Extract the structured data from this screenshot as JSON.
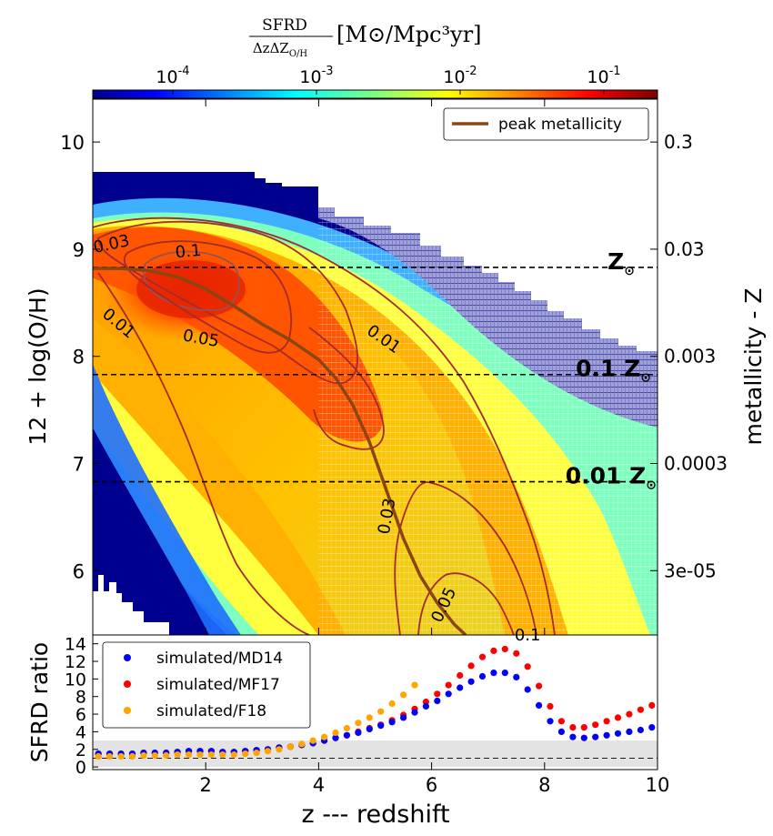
{
  "colorbar": {
    "title": "SFRD / ΔzΔZ_O/H [M⊙/Mpc³yr]",
    "title_num": "SFRD",
    "title_den": "ΔzΔZ",
    "title_den_sub": "O/H",
    "title_units": "[M⊙/Mpc³yr]",
    "ticks": [
      {
        "base": "10",
        "exp": "-4",
        "value": 0.0001
      },
      {
        "base": "10",
        "exp": "-3",
        "value": 0.001
      },
      {
        "base": "10",
        "exp": "-2",
        "value": 0.01
      },
      {
        "base": "10",
        "exp": "-1",
        "value": 0.1
      }
    ],
    "range": [
      2e-05,
      0.25
    ],
    "scale": "log"
  },
  "chart_data": [
    {
      "type": "heatmap",
      "title": "",
      "xlabel": "z --- redshift",
      "ylabel": "12 + log(O/H)",
      "ylabel_right": "metallicity - Z",
      "xlim": [
        0,
        10
      ],
      "ylim": [
        5.4,
        10.4
      ],
      "yticks": [
        "6",
        "7",
        "8",
        "9",
        "10"
      ],
      "yticks_right": [
        {
          "label": "3e-05",
          "oh": 6.0
        },
        {
          "label": "0.0003",
          "oh": 7.0
        },
        {
          "label": "0.003",
          "oh": 8.0
        },
        {
          "label": "0.03",
          "oh": 9.0
        },
        {
          "label": "0.3",
          "oh": 10.0
        }
      ],
      "hatched_region_start_z": 4,
      "legend": {
        "location": "top-right",
        "entries": [
          {
            "label": "peak metallicity",
            "color": "#8b4513"
          }
        ]
      },
      "reference_lines": [
        {
          "label": "Z",
          "sub": "⊙",
          "oh": 8.83
        },
        {
          "label": "0.1 Z",
          "sub": "⊙",
          "oh": 7.83
        },
        {
          "label": "0.01 Z",
          "sub": "⊙",
          "oh": 6.83
        }
      ],
      "peak_metallicity": {
        "z": [
          0,
          0.5,
          1,
          1.5,
          2,
          2.5,
          3,
          3.5,
          4,
          4.3,
          4.6,
          4.9,
          5.2,
          5.5,
          5.8,
          6.1,
          6.4,
          6.6
        ],
        "oh": [
          8.82,
          8.82,
          8.8,
          8.74,
          8.63,
          8.47,
          8.3,
          8.15,
          7.97,
          7.8,
          7.55,
          7.2,
          6.75,
          6.3,
          5.95,
          5.7,
          5.5,
          5.4
        ]
      },
      "contour_labels": [
        {
          "text": "0.03",
          "z": 0.35,
          "oh": 9.0
        },
        {
          "text": "0.1",
          "z": 1.7,
          "oh": 8.93
        },
        {
          "text": "0.01",
          "z": 0.4,
          "oh": 8.27
        },
        {
          "text": "0.05",
          "z": 1.9,
          "oh": 8.12
        },
        {
          "text": "0.01",
          "z": 5.1,
          "oh": 8.12
        },
        {
          "text": "0.03",
          "z": 5.3,
          "oh": 6.5
        },
        {
          "text": "0.05",
          "z": 6.3,
          "oh": 5.66
        },
        {
          "text": "0.1",
          "z": 7.7,
          "oh": 5.35
        }
      ]
    },
    {
      "type": "scatter",
      "xlabel": "z --- redshift",
      "ylabel": "SFRD ratio",
      "xlim": [
        0,
        10
      ],
      "ylim": [
        -0.3,
        15
      ],
      "xticks": [
        "2",
        "4",
        "6",
        "8",
        "10"
      ],
      "yticks": [
        "0",
        "2",
        "4",
        "6",
        "8",
        "10",
        "12",
        "14"
      ],
      "shaded_band": [
        0,
        3
      ],
      "dashed_line": 1,
      "legend": {
        "location": "top-left"
      },
      "series": [
        {
          "name": "simulated/MD14",
          "color": "#0000ff",
          "x": [
            0.1,
            0.3,
            0.5,
            0.7,
            0.9,
            1.1,
            1.3,
            1.5,
            1.7,
            1.9,
            2.1,
            2.3,
            2.5,
            2.7,
            2.9,
            3.1,
            3.3,
            3.5,
            3.7,
            3.9,
            4.1,
            4.3,
            4.5,
            4.7,
            4.9,
            5.1,
            5.3,
            5.5,
            5.7,
            5.9,
            6.1,
            6.3,
            6.5,
            6.7,
            6.9,
            7.1,
            7.3,
            7.5,
            7.7,
            7.9,
            8.1,
            8.3,
            8.5,
            8.7,
            8.9,
            9.1,
            9.3,
            9.5,
            9.7,
            9.9
          ],
          "values": [
            1.5,
            1.5,
            1.5,
            1.5,
            1.6,
            1.6,
            1.6,
            1.7,
            1.8,
            1.8,
            1.8,
            1.7,
            1.7,
            1.8,
            1.9,
            2.0,
            2.2,
            2.3,
            2.5,
            2.7,
            3.0,
            3.3,
            3.6,
            3.9,
            4.3,
            4.7,
            5.1,
            5.6,
            6.2,
            6.9,
            7.5,
            8.3,
            9.0,
            9.7,
            10.3,
            10.7,
            10.7,
            10.2,
            8.8,
            7.0,
            5.2,
            4.0,
            3.4,
            3.3,
            3.4,
            3.6,
            3.8,
            4.0,
            4.2,
            4.5
          ]
        },
        {
          "name": "simulated/MF17",
          "color": "#ff0000",
          "x": [
            0.1,
            0.3,
            0.5,
            0.7,
            0.9,
            1.1,
            1.3,
            1.5,
            1.7,
            1.9,
            2.1,
            2.3,
            2.5,
            2.7,
            2.9,
            3.1,
            3.3,
            3.5,
            3.7,
            3.9,
            4.1,
            4.3,
            4.5,
            4.7,
            4.9,
            5.1,
            5.3,
            5.5,
            5.7,
            5.9,
            6.1,
            6.3,
            6.5,
            6.7,
            6.9,
            7.1,
            7.3,
            7.5,
            7.7,
            7.9,
            8.1,
            8.3,
            8.5,
            8.7,
            8.9,
            9.1,
            9.3,
            9.5,
            9.7,
            9.9
          ],
          "values": [
            1.5,
            1.5,
            1.5,
            1.5,
            1.6,
            1.6,
            1.6,
            1.7,
            1.8,
            1.8,
            1.8,
            1.7,
            1.7,
            1.8,
            1.9,
            2.0,
            2.2,
            2.3,
            2.5,
            2.7,
            3.0,
            3.3,
            3.6,
            4.0,
            4.4,
            4.8,
            5.3,
            5.9,
            6.6,
            7.4,
            8.3,
            9.3,
            10.4,
            11.5,
            12.5,
            13.2,
            13.4,
            12.9,
            11.4,
            9.2,
            6.9,
            5.2,
            4.5,
            4.5,
            4.8,
            5.2,
            5.6,
            6.0,
            6.5,
            7.0
          ]
        },
        {
          "name": "simulated/F18",
          "color": "#ffa500",
          "x": [
            0.1,
            0.3,
            0.5,
            0.7,
            0.9,
            1.1,
            1.3,
            1.5,
            1.7,
            1.9,
            2.1,
            2.3,
            2.5,
            2.7,
            2.9,
            3.1,
            3.3,
            3.5,
            3.7,
            3.9,
            4.1,
            4.3,
            4.5,
            4.7,
            4.9,
            5.1,
            5.3,
            5.5,
            5.7
          ],
          "values": [
            1.2,
            1.2,
            1.2,
            1.2,
            1.3,
            1.3,
            1.3,
            1.4,
            1.4,
            1.4,
            1.4,
            1.4,
            1.4,
            1.5,
            1.6,
            1.8,
            2.0,
            2.3,
            2.6,
            3.0,
            3.4,
            3.9,
            4.4,
            5.0,
            5.6,
            6.3,
            7.2,
            8.2,
            9.3
          ]
        }
      ]
    }
  ]
}
